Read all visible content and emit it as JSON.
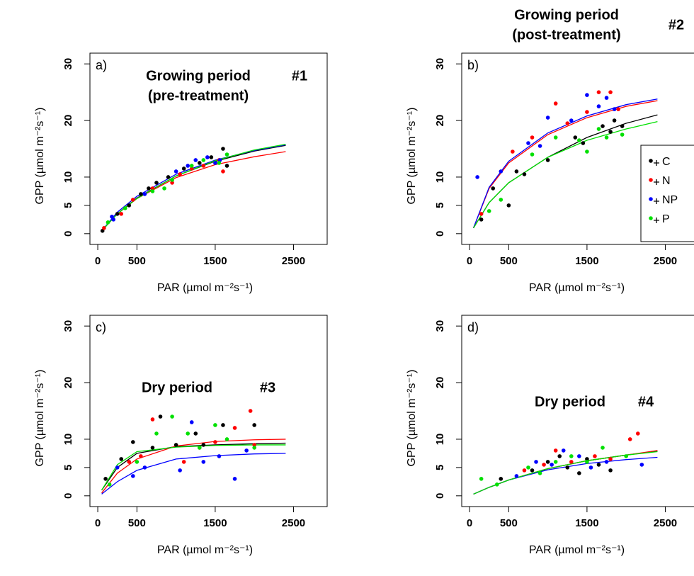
{
  "chart_data": [
    {
      "type": "scatter",
      "panel_label": "a)",
      "title": [
        "Growing period",
        "(pre-treatment)"
      ],
      "annotation": "#1",
      "xlabel": "PAR (µmol  m⁻²s⁻¹)",
      "ylabel": "GPP (µmol  m⁻²s⁻¹)",
      "xlim": [
        -100,
        2930
      ],
      "ylim": [
        -1.9,
        31.9
      ],
      "xticks": [
        0,
        500,
        1500,
        2500
      ],
      "yticks": [
        0,
        5,
        10,
        20,
        30
      ],
      "series": [
        {
          "color": "#000000",
          "x": [
            60,
            250,
            400,
            550,
            650,
            750,
            900,
            1100,
            1300,
            1450,
            1600,
            1650
          ],
          "values": [
            0.5,
            3.5,
            5,
            7,
            8,
            9,
            10,
            11.5,
            12.5,
            13.5,
            15,
            12
          ],
          "curve_x": [
            50,
            250,
            500,
            1000,
            1500,
            2000,
            2400
          ],
          "curve_y": [
            0.5,
            3.5,
            6.3,
            10.2,
            12.8,
            14.6,
            15.6
          ]
        },
        {
          "color": "#ff0000",
          "x": [
            80,
            300,
            450,
            700,
            950,
            1050,
            1200,
            1350,
            1550,
            1600
          ],
          "values": [
            1,
            3.5,
            6,
            8,
            9,
            10.5,
            11.5,
            12,
            13,
            11
          ],
          "curve_x": [
            50,
            250,
            500,
            1000,
            1500,
            2000,
            2400
          ],
          "curve_y": [
            0.5,
            3.5,
            6.2,
            9.9,
            12.2,
            13.6,
            14.5
          ]
        },
        {
          "color": "#0000ff",
          "x": [
            180,
            200,
            600,
            1000,
            1150,
            1250,
            1400,
            1500,
            1560
          ],
          "values": [
            3,
            2.5,
            7,
            11,
            12,
            13,
            13.5,
            12.5,
            13
          ],
          "curve_x": [
            50,
            250,
            500,
            1000,
            1500,
            2000,
            2400
          ],
          "curve_y": [
            0.5,
            3.8,
            6.6,
            10.5,
            13,
            14.7,
            15.7
          ]
        },
        {
          "color": "#00e000",
          "x": [
            130,
            350,
            700,
            850,
            950,
            1200,
            1350,
            1550,
            1650
          ],
          "values": [
            2,
            4.5,
            7.5,
            8,
            9.5,
            12,
            13,
            12.5,
            14
          ],
          "curve_x": [
            50,
            250,
            500,
            1000,
            1500,
            2000,
            2400
          ],
          "curve_y": [
            0.5,
            3.5,
            6.2,
            10.2,
            12.9,
            14.8,
            15.8
          ]
        }
      ]
    },
    {
      "type": "scatter",
      "panel_label": "b)",
      "title": [
        "Growing period",
        "(post-treatment)"
      ],
      "annotation": "#2",
      "xlabel": "PAR (µmol  m⁻²s⁻¹)",
      "ylabel": "GPP (µmol  m⁻²s⁻¹)",
      "xlim": [
        -100,
        2930
      ],
      "ylim": [
        -1.9,
        31.9
      ],
      "xticks": [
        0,
        500,
        1500,
        2500
      ],
      "yticks": [
        0,
        5,
        10,
        20,
        30
      ],
      "legend": "right",
      "series": [
        {
          "name": "C",
          "color": "#000000",
          "x": [
            150,
            300,
            500,
            600,
            700,
            1000,
            1350,
            1450,
            1700,
            1800,
            1850,
            1950
          ],
          "values": [
            2.5,
            8,
            5,
            11,
            10.5,
            13,
            17,
            16,
            19,
            18,
            20,
            19
          ],
          "curve_x": [
            50,
            250,
            500,
            1000,
            1500,
            2000,
            2400
          ],
          "curve_y": [
            1,
            5.5,
            9,
            13.5,
            17,
            19.5,
            21
          ]
        },
        {
          "name": "N",
          "color": "#ff0000",
          "x": [
            150,
            550,
            800,
            1100,
            1250,
            1500,
            1650,
            1800,
            1900
          ],
          "values": [
            3.5,
            14.5,
            17,
            23,
            19.5,
            21.5,
            25,
            25,
            22
          ],
          "curve_x": [
            50,
            250,
            500,
            1000,
            1500,
            2000,
            2400
          ],
          "curve_y": [
            1,
            8,
            12.5,
            17.5,
            20.5,
            22.5,
            23.5
          ]
        },
        {
          "name": "NP",
          "color": "#0000ff",
          "x": [
            100,
            400,
            750,
            900,
            1000,
            1300,
            1500,
            1650,
            1750,
            1850
          ],
          "values": [
            10,
            11,
            16,
            15.5,
            20.5,
            20,
            24.5,
            22.5,
            24,
            22
          ],
          "curve_x": [
            50,
            250,
            500,
            1000,
            1500,
            2000,
            2400
          ],
          "curve_y": [
            1,
            8.2,
            12.8,
            17.8,
            20.8,
            22.8,
            23.8
          ]
        },
        {
          "name": "P",
          "color": "#00e000",
          "x": [
            250,
            400,
            800,
            1100,
            1400,
            1500,
            1650,
            1750,
            1950
          ],
          "values": [
            4,
            6,
            14,
            17,
            16.5,
            14.5,
            18.5,
            17,
            17.5
          ],
          "curve_x": [
            50,
            250,
            500,
            1000,
            1500,
            2000,
            2400
          ],
          "curve_y": [
            1,
            5.5,
            9,
            13.5,
            16.5,
            18.5,
            19.8
          ]
        }
      ]
    },
    {
      "type": "scatter",
      "panel_label": "c)",
      "title": [
        "Dry period"
      ],
      "annotation": "#3",
      "xlabel": "PAR (µmol  m⁻²s⁻¹)",
      "ylabel": "GPP (µmol  m⁻²s⁻¹)",
      "xlim": [
        -100,
        2930
      ],
      "ylim": [
        -1.9,
        31.9
      ],
      "xticks": [
        0,
        500,
        1500,
        2500
      ],
      "yticks": [
        0,
        5,
        10,
        20,
        30
      ],
      "series": [
        {
          "color": "#000000",
          "x": [
            100,
            300,
            450,
            700,
            800,
            1000,
            1250,
            1350,
            1600,
            2000
          ],
          "values": [
            3,
            6.5,
            9.5,
            8.5,
            14,
            9,
            11,
            9,
            12.5,
            12.5
          ],
          "curve_x": [
            50,
            250,
            500,
            1000,
            1500,
            2000,
            2400
          ],
          "curve_y": [
            1,
            5,
            7.5,
            8.7,
            9,
            9.2,
            9.3
          ]
        },
        {
          "color": "#ff0000",
          "x": [
            400,
            550,
            700,
            1100,
            1300,
            1500,
            1750,
            1950,
            2000
          ],
          "values": [
            6,
            7,
            13.5,
            6,
            8.5,
            9.5,
            12,
            15,
            9
          ],
          "curve_x": [
            50,
            250,
            500,
            1000,
            1500,
            2000,
            2400
          ],
          "curve_y": [
            0.5,
            4,
            6.5,
            8.8,
            9.6,
            9.9,
            10
          ]
        },
        {
          "color": "#0000ff",
          "x": [
            250,
            450,
            600,
            1050,
            1200,
            1350,
            1550,
            1750,
            1900
          ],
          "values": [
            5,
            3.5,
            5,
            4.5,
            13,
            6,
            7,
            3,
            8
          ],
          "curve_x": [
            50,
            250,
            500,
            1000,
            1500,
            2000,
            2400
          ],
          "curve_y": [
            0.3,
            2.5,
            4.5,
            6.5,
            7.1,
            7.4,
            7.5
          ]
        },
        {
          "color": "#00e000",
          "x": [
            150,
            500,
            750,
            950,
            1150,
            1300,
            1500,
            1650,
            2000
          ],
          "values": [
            2,
            6,
            11,
            14,
            11,
            8.5,
            12.5,
            10,
            8.5
          ],
          "curve_x": [
            50,
            250,
            500,
            1000,
            1500,
            2000,
            2400
          ],
          "curve_y": [
            1,
            5.5,
            7.8,
            8.6,
            8.9,
            9,
            9
          ]
        }
      ]
    },
    {
      "type": "scatter",
      "panel_label": "d)",
      "title": [
        "Dry period"
      ],
      "annotation": "#4",
      "xlabel": "PAR (µmol  m⁻²s⁻¹)",
      "ylabel": "GPP (µmol  m⁻²s⁻¹)",
      "xlim": [
        -100,
        2930
      ],
      "ylim": [
        -1.9,
        31.9
      ],
      "xticks": [
        0,
        500,
        1500,
        2500
      ],
      "yticks": [
        0,
        5,
        10,
        20,
        30
      ],
      "series": [
        {
          "color": "#000000",
          "x": [
            400,
            800,
            1000,
            1150,
            1250,
            1400,
            1500,
            1650,
            1800
          ],
          "values": [
            3,
            4.5,
            6,
            7,
            5,
            4,
            6.5,
            5.5,
            4.5
          ],
          "curve_x": [
            50,
            250,
            500,
            1000,
            1500,
            2000,
            2400
          ],
          "curve_y": [
            0.3,
            1.5,
            2.8,
            4.8,
            6.2,
            7.2,
            7.9
          ]
        },
        {
          "color": "#ff0000",
          "x": [
            700,
            950,
            1100,
            1300,
            1600,
            1800,
            2050,
            2150
          ],
          "values": [
            4.5,
            5.5,
            8,
            6,
            7,
            6.5,
            10,
            11
          ],
          "curve_x": [
            50,
            250,
            500,
            1000,
            1500,
            2000,
            2400
          ],
          "curve_y": [
            0.3,
            1.5,
            2.8,
            4.8,
            6.2,
            7.2,
            8
          ]
        },
        {
          "color": "#0000ff",
          "x": [
            600,
            850,
            1050,
            1200,
            1400,
            1550,
            1750,
            2200
          ],
          "values": [
            3.5,
            6,
            5.5,
            8,
            7,
            5,
            6,
            5.5
          ],
          "curve_x": [
            50,
            250,
            500,
            1000,
            1500,
            2000,
            2400
          ],
          "curve_y": [
            0.3,
            1.5,
            2.8,
            4.6,
            5.7,
            6.4,
            6.8
          ]
        },
        {
          "color": "#00e000",
          "x": [
            150,
            350,
            750,
            900,
            1100,
            1300,
            1500,
            1700,
            2000
          ],
          "values": [
            3,
            2,
            5,
            4,
            6,
            7,
            6,
            8.5,
            7
          ],
          "curve_x": [
            50,
            250,
            500,
            1000,
            1500,
            2000,
            2400
          ],
          "curve_y": [
            0.3,
            1.5,
            2.8,
            4.8,
            6.2,
            7.2,
            7.8
          ]
        }
      ]
    }
  ]
}
